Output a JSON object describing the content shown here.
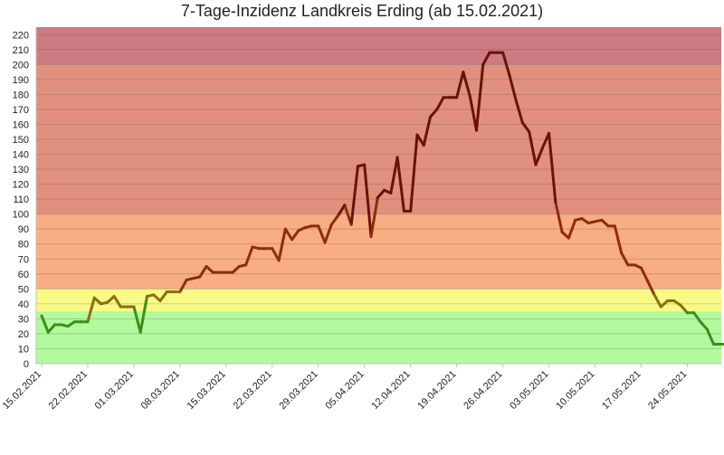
{
  "chart_data": {
    "type": "line",
    "title": "7-Tage-Inzidenz Landkreis Erding (ab 15.02.2021)",
    "xlabel": "",
    "ylabel": "",
    "ylim": [
      0,
      225
    ],
    "y_ticks": [
      0,
      10,
      20,
      30,
      40,
      50,
      60,
      70,
      80,
      90,
      100,
      110,
      120,
      130,
      140,
      150,
      160,
      170,
      180,
      190,
      200,
      210,
      220
    ],
    "x_ticks": [
      "15.02.2021",
      "22.02.2021",
      "01.03.2021",
      "08.03.2021",
      "15.03.2021",
      "22.03.2021",
      "29.03.2021",
      "05.04.2021",
      "12.04.2021",
      "19.04.2021",
      "26.04.2021",
      "03.05.2021",
      "10.05.2021",
      "17.05.2021",
      "24.05.2021"
    ],
    "grid": true,
    "legend": "none",
    "bands": [
      {
        "from": 0,
        "to": 35,
        "color": "#b3fa9e"
      },
      {
        "from": 35,
        "to": 50,
        "color": "#f9f986"
      },
      {
        "from": 50,
        "to": 100,
        "color": "#f8ae82"
      },
      {
        "from": 100,
        "to": 200,
        "color": "#e2907e"
      },
      {
        "from": 200,
        "to": 225,
        "color": "#cd7a80"
      }
    ],
    "line_colors": [
      {
        "below": 35,
        "color": "#3b8f1c"
      },
      {
        "below": 50,
        "color": "#8a7010"
      },
      {
        "below": 100,
        "color": "#8e2c0c"
      },
      {
        "below": 1000,
        "color": "#6a1208"
      }
    ],
    "series": [
      {
        "x": [
          "15.02.2021",
          "16.02.2021",
          "17.02.2021",
          "18.02.2021",
          "19.02.2021",
          "20.02.2021",
          "21.02.2021",
          "22.02.2021",
          "23.02.2021",
          "24.02.2021",
          "25.02.2021",
          "26.02.2021",
          "27.02.2021",
          "28.02.2021",
          "01.03.2021",
          "02.03.2021",
          "03.03.2021",
          "04.03.2021",
          "05.03.2021",
          "06.03.2021",
          "07.03.2021",
          "08.03.2021",
          "09.03.2021",
          "10.03.2021",
          "11.03.2021",
          "12.03.2021",
          "13.03.2021",
          "14.03.2021",
          "15.03.2021",
          "16.03.2021",
          "17.03.2021",
          "18.03.2021",
          "19.03.2021",
          "20.03.2021",
          "21.03.2021",
          "22.03.2021",
          "23.03.2021",
          "24.03.2021",
          "25.03.2021",
          "26.03.2021",
          "27.03.2021",
          "28.03.2021",
          "29.03.2021",
          "30.03.2021",
          "31.03.2021",
          "01.04.2021",
          "02.04.2021",
          "03.04.2021",
          "04.04.2021",
          "05.04.2021",
          "06.04.2021",
          "07.04.2021",
          "08.04.2021",
          "09.04.2021",
          "10.04.2021",
          "11.04.2021",
          "12.04.2021",
          "13.04.2021",
          "14.04.2021",
          "15.04.2021",
          "16.04.2021",
          "17.04.2021",
          "18.04.2021",
          "19.04.2021",
          "20.04.2021",
          "21.04.2021",
          "22.04.2021",
          "23.04.2021",
          "24.04.2021",
          "25.04.2021",
          "26.04.2021",
          "27.04.2021",
          "28.04.2021",
          "29.04.2021",
          "30.04.2021",
          "01.05.2021",
          "02.05.2021",
          "03.05.2021",
          "04.05.2021",
          "05.05.2021",
          "06.05.2021",
          "07.05.2021",
          "08.05.2021",
          "09.05.2021",
          "10.05.2021",
          "11.05.2021",
          "12.05.2021",
          "13.05.2021",
          "14.05.2021",
          "15.05.2021",
          "16.05.2021",
          "17.05.2021",
          "18.05.2021",
          "19.05.2021",
          "20.05.2021",
          "21.05.2021",
          "22.05.2021",
          "23.05.2021",
          "24.05.2021",
          "25.05.2021",
          "26.05.2021",
          "27.05.2021",
          "28.05.2021",
          "29.05.2021",
          "30.05.2021",
          "31.05.2021"
        ],
        "values": [
          32,
          21,
          26,
          26,
          25,
          28,
          28,
          28,
          44,
          40,
          41,
          45,
          38,
          38,
          38,
          21,
          45,
          46,
          42,
          48,
          48,
          48,
          56,
          57,
          58,
          65,
          61,
          61,
          61,
          61,
          65,
          66,
          78,
          77,
          77,
          77,
          69,
          90,
          83,
          89,
          91,
          92,
          92,
          81,
          93,
          99,
          106,
          93,
          132,
          133,
          85,
          111,
          116,
          114,
          138,
          102,
          102,
          153,
          146,
          165,
          170,
          178,
          178,
          178,
          195,
          179,
          156,
          200,
          208,
          208,
          208,
          193,
          176,
          161,
          155,
          133,
          144,
          154,
          108,
          88,
          84,
          96,
          97,
          94,
          95,
          96,
          92,
          92,
          74,
          66,
          66,
          64,
          55,
          46,
          38,
          42,
          42,
          39,
          34,
          34,
          28,
          23,
          13,
          13,
          13,
          13
        ]
      }
    ]
  }
}
